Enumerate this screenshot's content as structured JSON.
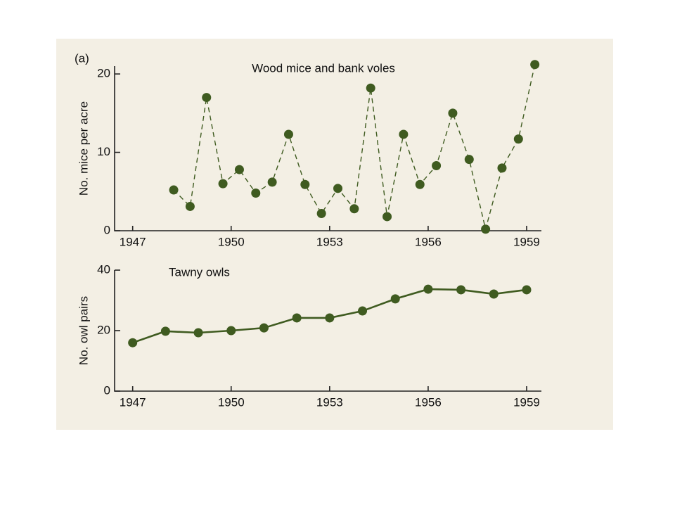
{
  "chart_data": [
    {
      "type": "line",
      "panel_label": "(a)",
      "title": "Wood mice and bank voles",
      "y_label": "No. mice per acre",
      "x": [
        1948.25,
        1948.75,
        1949.25,
        1949.75,
        1950.25,
        1950.75,
        1951.25,
        1951.75,
        1952.25,
        1952.75,
        1953.25,
        1953.75,
        1954.25,
        1954.75,
        1955.25,
        1955.75,
        1956.25,
        1956.75,
        1957.25,
        1957.75,
        1958.25,
        1958.75,
        1959.25
      ],
      "series": [
        {
          "color": "#3f5b20",
          "line_style": "dashed",
          "values": [
            5.2,
            3.1,
            17.0,
            6.0,
            7.8,
            4.8,
            6.2,
            12.3,
            5.9,
            2.2,
            5.4,
            2.8,
            18.2,
            1.8,
            12.3,
            5.9,
            8.3,
            15.0,
            9.1,
            0.2,
            8.0,
            11.7,
            21.2
          ]
        }
      ],
      "xlim": [
        1946.45,
        1959.45
      ],
      "xticks": [
        1947,
        1950,
        1953,
        1956,
        1959
      ],
      "ylim": [
        0,
        21
      ],
      "yticks": [
        0,
        10,
        20
      ]
    },
    {
      "type": "line",
      "title": "Tawny owls",
      "y_label": "No. owl pairs",
      "x": [
        1947,
        1948,
        1949,
        1950,
        1951,
        1952,
        1953,
        1954,
        1955,
        1956,
        1957,
        1958,
        1959
      ],
      "series": [
        {
          "color": "#3f5b20",
          "line_style": "solid",
          "values": [
            16,
            19.8,
            19.3,
            20,
            20.9,
            24.2,
            24.2,
            26.5,
            30.5,
            33.7,
            33.5,
            32.1,
            33.5
          ]
        }
      ],
      "xlim": [
        1946.45,
        1959.45
      ],
      "xticks": [
        1947,
        1950,
        1953,
        1956,
        1959
      ],
      "ylim": [
        0,
        40
      ],
      "yticks": [
        0,
        20,
        40
      ]
    }
  ]
}
